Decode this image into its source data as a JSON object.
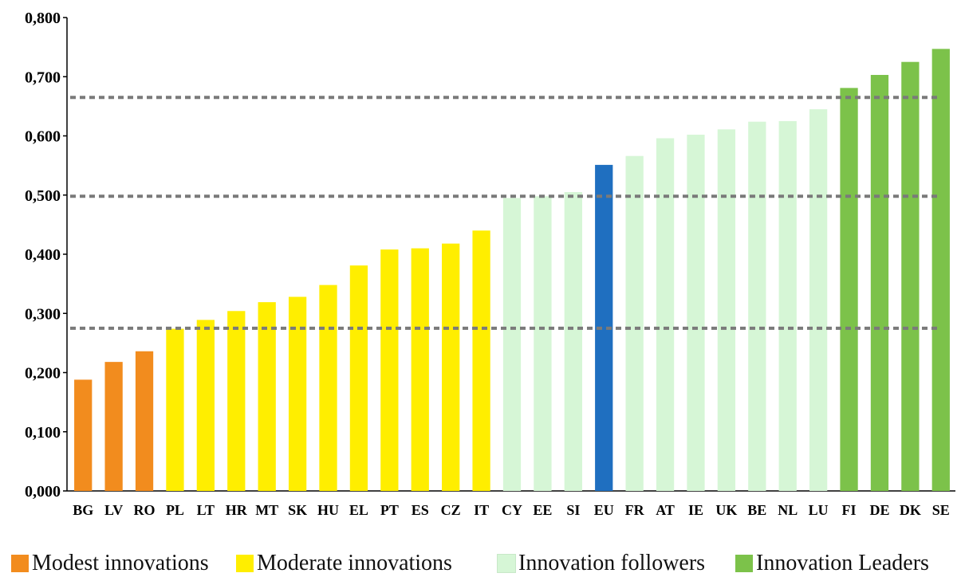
{
  "chart_data": {
    "type": "bar",
    "title": "",
    "xlabel": "",
    "ylabel": "",
    "ylim": [
      0,
      0.8
    ],
    "yticks": [
      "0,000",
      "0,100",
      "0,200",
      "0,300",
      "0,400",
      "0,500",
      "0,600",
      "0,700",
      "0,800"
    ],
    "categories": [
      "BG",
      "LV",
      "RO",
      "PL",
      "LT",
      "HR",
      "MT",
      "SK",
      "HU",
      "EL",
      "PT",
      "ES",
      "CZ",
      "IT",
      "CY",
      "EE",
      "SI",
      "EU",
      "FR",
      "AT",
      "IE",
      "UK",
      "BE",
      "NL",
      "LU",
      "FI",
      "DE",
      "DK",
      "SE"
    ],
    "values": [
      0.188,
      0.218,
      0.236,
      0.274,
      0.289,
      0.304,
      0.319,
      0.328,
      0.348,
      0.381,
      0.408,
      0.41,
      0.418,
      0.44,
      0.495,
      0.498,
      0.505,
      0.551,
      0.566,
      0.596,
      0.602,
      0.611,
      0.624,
      0.625,
      0.645,
      0.681,
      0.703,
      0.725,
      0.747
    ],
    "groups": [
      "modest",
      "modest",
      "modest",
      "moderate",
      "moderate",
      "moderate",
      "moderate",
      "moderate",
      "moderate",
      "moderate",
      "moderate",
      "moderate",
      "moderate",
      "moderate",
      "follower",
      "follower",
      "follower",
      "eu",
      "follower",
      "follower",
      "follower",
      "follower",
      "follower",
      "follower",
      "follower",
      "leader",
      "leader",
      "leader",
      "leader"
    ],
    "reference_lines": [
      0.275,
      0.498,
      0.665
    ],
    "grid": false,
    "legend_position": "bottom",
    "colors": {
      "modest": "#f28c1e",
      "moderate": "#ffee00",
      "follower": "#d6f6d6",
      "eu": "#1f6fc0",
      "leader": "#7cc24a",
      "reference_line": "#7a7a7a"
    },
    "legend": [
      {
        "label": "Modest innovations",
        "swatch_color": "#f28c1e"
      },
      {
        "label": "Moderate innovations",
        "swatch_color": "#ffee00"
      },
      {
        "label": "Innovation followers",
        "swatch_color": "#d6f6d6"
      },
      {
        "label": "Innovation Leaders",
        "swatch_color": "#7cc24a"
      }
    ]
  }
}
